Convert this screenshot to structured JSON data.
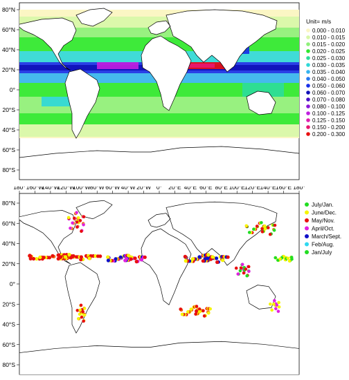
{
  "top_map": {
    "lat_ticks": [
      "80°N",
      "60°N",
      "40°N",
      "20°N",
      "0°",
      "20°S",
      "40°S",
      "60°S",
      "80°S"
    ],
    "legend_title": "Unit= m/s",
    "legend": [
      {
        "label": "0.000 - 0.010",
        "color": "#fbf6c4"
      },
      {
        "label": "0.010 - 0.015",
        "color": "#d8f7a8"
      },
      {
        "label": "0.015 - 0.020",
        "color": "#8ff07a"
      },
      {
        "label": "0.020 - 0.025",
        "color": "#2ee82e"
      },
      {
        "label": "0.025 - 0.030",
        "color": "#2ddc9a"
      },
      {
        "label": "0.030 - 0.035",
        "color": "#30d8d8"
      },
      {
        "label": "0.035 - 0.040",
        "color": "#35b4f0"
      },
      {
        "label": "0.040 - 0.050",
        "color": "#2878f0"
      },
      {
        "label": "0.050 - 0.060",
        "color": "#1830e8"
      },
      {
        "label": "0.060 - 0.070",
        "color": "#1010b8"
      },
      {
        "label": "0.070 - 0.080",
        "color": "#4a10c8"
      },
      {
        "label": "0.080 - 0.100",
        "color": "#8a18d8"
      },
      {
        "label": "0.100 - 0.125",
        "color": "#c020e0"
      },
      {
        "label": "0.125 - 0.150",
        "color": "#e020b0"
      },
      {
        "label": "0.150 - 0.200",
        "color": "#e81870"
      },
      {
        "label": "0.200 - 0.300",
        "color": "#e81010"
      }
    ]
  },
  "lon_ticks": [
    "180°",
    "160°W",
    "140°W",
    "120°W",
    "100°W",
    "80°W",
    "60°W",
    "40°W",
    "20°W",
    "0°",
    "20°E",
    "40°E",
    "60°E",
    "80°E",
    "100°E",
    "120°E",
    "140°E",
    "160°E",
    "180°"
  ],
  "bottom_map": {
    "lat_ticks": [
      "80°N",
      "60°N",
      "40°N",
      "20°N",
      "0°",
      "20°S",
      "40°S",
      "60°S",
      "80°S"
    ],
    "legend": [
      {
        "label": "July/Jan.",
        "color": "#22dd22"
      },
      {
        "label": "June/Dec.",
        "color": "#f5f500"
      },
      {
        "label": "May/Nov.",
        "color": "#e81010"
      },
      {
        "label": "April/Oct.",
        "color": "#e020e0"
      },
      {
        "label": "March/Sept.",
        "color": "#1010c8"
      },
      {
        "label": "Feb/Aug.",
        "color": "#30d8f0"
      },
      {
        "label": "Jan/July",
        "color": "#22dd22"
      }
    ]
  }
}
